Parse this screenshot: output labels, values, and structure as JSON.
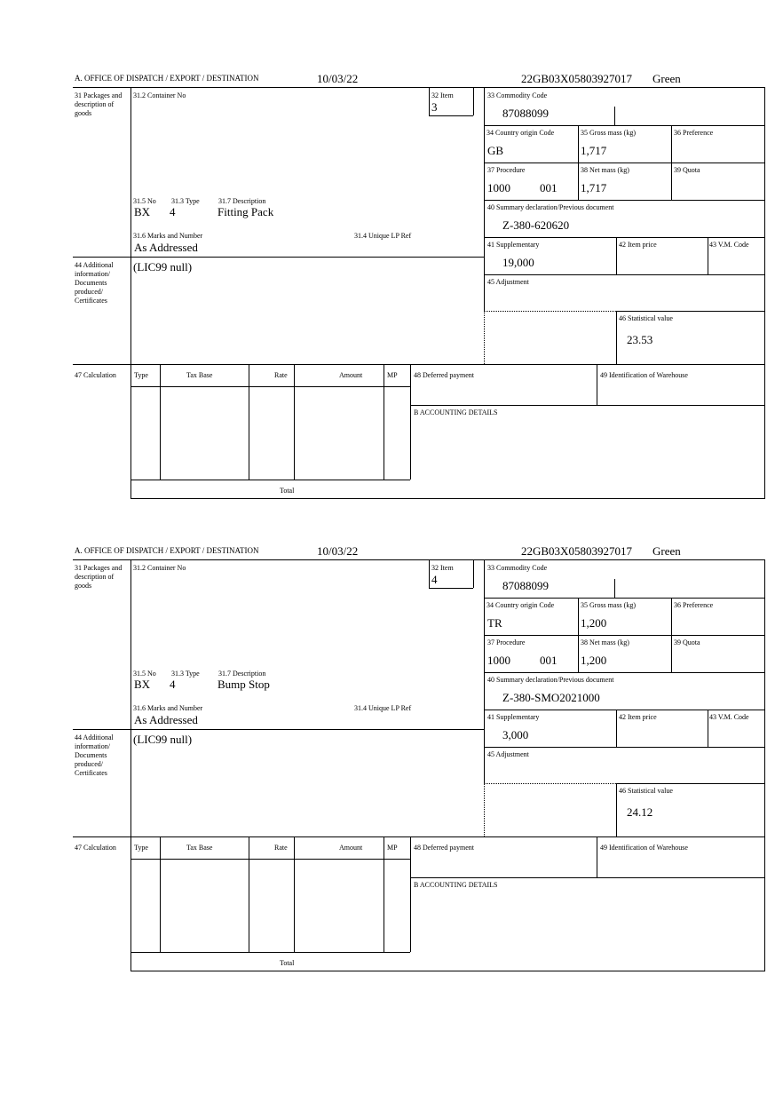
{
  "labels": {
    "office": "A.  OFFICE OF DISPATCH / EXPORT / DESTINATION",
    "packages": "31 Packages and description of goods",
    "container_no": "31.2 Container No",
    "item": "32 Item",
    "no": "31.5 No",
    "type": "31.3 Type",
    "description": "31.7 Description",
    "marks": "31.6 Marks and Number",
    "unique_ref": "31.4 Unique LP Ref",
    "commodity_code": "33 Commodity Code",
    "country_origin": "34 Country origin Code",
    "gross_mass": "35 Gross mass (kg)",
    "preference": "36 Preference",
    "procedure": "37 Procedure",
    "net_mass": "38 Net mass (kg)",
    "quota": "39 Quota",
    "summary_decl": "40 Summary declaration/Previous document",
    "supplementary": "41 Supplementary",
    "item_price": "42 Item price",
    "vm_code": "43 V.M. Code",
    "adjustment": "45 Adjustment",
    "statistical_value": "46 Statistical value",
    "additional_info": "44 Additional information/ Documents produced/ Certificates",
    "calculation": "47 Calculation",
    "calc_type": "Type",
    "calc_tax_base": "Tax Base",
    "calc_rate": "Rate",
    "calc_amount": "Amount",
    "calc_mp": "MP",
    "deferred_payment": "48 Deferred payment",
    "warehouse": "49 Identification of Warehouse",
    "accounting": "B ACCOUNTING DETAILS",
    "total": "Total"
  },
  "forms": [
    {
      "date": "10/03/22",
      "reference": "22GB03X05803927017",
      "status": "Green",
      "item": "3",
      "package_kind": "BX",
      "package_count": "4",
      "description": "Fitting Pack",
      "marks": "As Addressed",
      "commodity_code": "87088099",
      "country_origin": "GB",
      "gross_mass": "1,717",
      "procedure": "1000",
      "procedure_extra": "001",
      "net_mass": "1,717",
      "summary_decl": "Z-380-620620",
      "supplementary": "19,000",
      "statistical_value": "23.53",
      "additional_info": "(LIC99 null)"
    },
    {
      "date": "10/03/22",
      "reference": "22GB03X05803927017",
      "status": "Green",
      "item": "4",
      "package_kind": "BX",
      "package_count": "4",
      "description": "Bump Stop",
      "marks": "As Addressed",
      "commodity_code": "87088099",
      "country_origin": "TR",
      "gross_mass": "1,200",
      "procedure": "1000",
      "procedure_extra": "001",
      "net_mass": "1,200",
      "summary_decl": "Z-380-SMO2021000",
      "supplementary": "3,000",
      "statistical_value": "24.12",
      "additional_info": "(LIC99 null)"
    }
  ]
}
